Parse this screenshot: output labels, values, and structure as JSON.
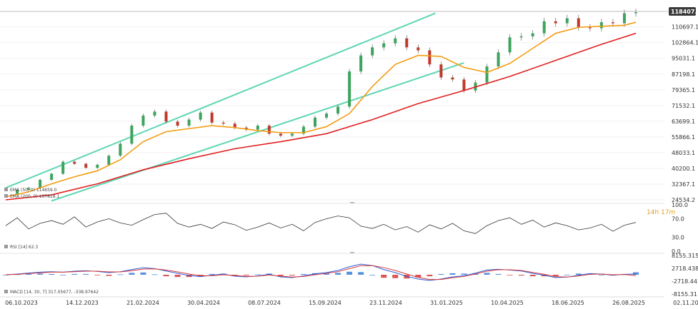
{
  "chart_data": [
    {
      "type": "line",
      "panel": "price",
      "ylim": [
        24534.2,
        118407.8
      ],
      "y_ticks": [
        "118407.8",
        "110697.1",
        "102864.1",
        "95031.1",
        "87198.1",
        "79365.1",
        "71532.1",
        "63699.1",
        "55866.1",
        "48033.1",
        "40200.1",
        "32367.1",
        "24534.2"
      ],
      "x_ticks": [
        "06.10.2023",
        "14.12.2023",
        "21.02.2024",
        "30.04.2024",
        "08.07.2024",
        "15.09.2024",
        "23.11.2024",
        "31.01.2025",
        "10.04.2025",
        "18.06.2025",
        "26.08.2025",
        "02.11.2025"
      ],
      "last_price_label": "118407.8",
      "countdown": "14h 17m",
      "legend": [
        {
          "name": "EMA (50, 0) 114659.0",
          "color": "#f39c12"
        },
        {
          "name": "EMA (200, 0) 107818.1",
          "color": "#e02020"
        }
      ],
      "channel": {
        "color": "#5fd6b4",
        "upper": [
          [
            0,
            30500
          ],
          [
            37.5,
            117500
          ]
        ],
        "lower": [
          [
            4,
            24000
          ],
          [
            40,
            92800
          ]
        ]
      },
      "price": [
        [
          0,
          27500
        ],
        [
          1,
          29500
        ],
        [
          2,
          30500
        ],
        [
          3,
          34500
        ],
        [
          4,
          37500
        ],
        [
          5,
          43500
        ],
        [
          6,
          42500
        ],
        [
          7,
          40500
        ],
        [
          8,
          42000
        ],
        [
          9,
          46500
        ],
        [
          10,
          52500
        ],
        [
          11,
          61500
        ],
        [
          12,
          66500
        ],
        [
          13,
          68500
        ],
        [
          14,
          63500
        ],
        [
          15,
          61500
        ],
        [
          16,
          64500
        ],
        [
          17,
          68000
        ],
        [
          18,
          63000
        ],
        [
          19,
          62500
        ],
        [
          20,
          60500
        ],
        [
          21,
          59500
        ],
        [
          22,
          61500
        ],
        [
          23,
          57500
        ],
        [
          24,
          56500
        ],
        [
          25,
          57500
        ],
        [
          26,
          61000
        ],
        [
          27,
          65500
        ],
        [
          28,
          67500
        ],
        [
          29,
          71000
        ],
        [
          30,
          88500
        ],
        [
          31,
          96500
        ],
        [
          32,
          100500
        ],
        [
          33,
          102500
        ],
        [
          34,
          105000
        ],
        [
          35,
          100500
        ],
        [
          36,
          99000
        ],
        [
          37,
          92000
        ],
        [
          38,
          85500
        ],
        [
          39,
          84500
        ],
        [
          40,
          79000
        ],
        [
          41,
          83000
        ],
        [
          42,
          91000
        ],
        [
          43,
          98000
        ],
        [
          44,
          105500
        ],
        [
          45,
          106000
        ],
        [
          46,
          107500
        ],
        [
          47,
          113500
        ],
        [
          48,
          112500
        ],
        [
          49,
          115000
        ],
        [
          50,
          110500
        ],
        [
          51,
          110000
        ],
        [
          52,
          113000
        ],
        [
          53,
          112500
        ],
        [
          54,
          117500
        ],
        [
          55,
          118000
        ]
      ],
      "ema50": [
        [
          0,
          26000
        ],
        [
          2,
          28500
        ],
        [
          4,
          32500
        ],
        [
          6,
          36000
        ],
        [
          8,
          39000
        ],
        [
          10,
          44500
        ],
        [
          12,
          53500
        ],
        [
          14,
          58500
        ],
        [
          16,
          60000
        ],
        [
          18,
          61500
        ],
        [
          20,
          60500
        ],
        [
          22,
          59000
        ],
        [
          24,
          58000
        ],
        [
          26,
          58000
        ],
        [
          28,
          61000
        ],
        [
          30,
          67500
        ],
        [
          32,
          81000
        ],
        [
          34,
          92000
        ],
        [
          36,
          96500
        ],
        [
          38,
          96000
        ],
        [
          40,
          90500
        ],
        [
          42,
          88000
        ],
        [
          44,
          92500
        ],
        [
          46,
          100000
        ],
        [
          48,
          107500
        ],
        [
          50,
          110500
        ],
        [
          52,
          111000
        ],
        [
          54,
          111500
        ],
        [
          55,
          113000
        ]
      ],
      "ema200": [
        [
          0,
          24534.2
        ],
        [
          4,
          27000
        ],
        [
          8,
          32500
        ],
        [
          12,
          39500
        ],
        [
          16,
          45000
        ],
        [
          20,
          50000
        ],
        [
          24,
          53500
        ],
        [
          28,
          57500
        ],
        [
          32,
          64500
        ],
        [
          36,
          72500
        ],
        [
          40,
          79000
        ],
        [
          44,
          86000
        ],
        [
          48,
          94000
        ],
        [
          52,
          102000
        ],
        [
          55,
          107500
        ]
      ]
    },
    {
      "type": "line",
      "panel": "rsi",
      "legend": "RSI [14] 62.3",
      "ylim": [
        0,
        100
      ],
      "y_ticks": [
        "100.0",
        "70.0",
        "30.0",
        "0.0"
      ],
      "values": [
        55,
        72,
        48,
        60,
        66,
        58,
        74,
        52,
        63,
        70,
        61,
        56,
        68,
        79,
        82,
        60,
        52,
        58,
        49,
        63,
        57,
        45,
        52,
        61,
        50,
        58,
        44,
        62,
        70,
        76,
        72,
        54,
        49,
        58,
        46,
        53,
        41,
        57,
        48,
        60,
        44,
        38,
        55,
        66,
        72,
        58,
        67,
        52,
        61,
        55,
        46,
        50,
        58,
        43,
        56,
        62
      ]
    },
    {
      "type": "bar",
      "panel": "macd",
      "legend": "MACD [14, 30, 7] 317.05677, -338.97642",
      "ylim": [
        -8155.31,
        8155.315
      ],
      "y_ticks": [
        "8155.315",
        "2718.438",
        "-2718.44",
        "-8155.31"
      ],
      "macd": [
        0,
        300,
        700,
        1100,
        1300,
        1100,
        1500,
        1700,
        1400,
        900,
        1300,
        2200,
        3000,
        2600,
        1600,
        600,
        -300,
        -800,
        -200,
        300,
        -600,
        -900,
        -500,
        200,
        -900,
        -1200,
        -500,
        400,
        900,
        1800,
        3400,
        4500,
        3900,
        2200,
        900,
        -700,
        -1800,
        -2400,
        -1800,
        -900,
        -400,
        700,
        2000,
        2300,
        2000,
        1600,
        600,
        -200,
        -1200,
        -1000,
        -200,
        500,
        300,
        -200,
        200,
        317
      ],
      "signal": [
        0,
        200,
        500,
        800,
        1100,
        1100,
        1300,
        1500,
        1500,
        1200,
        1200,
        1700,
        2400,
        2500,
        2000,
        1200,
        300,
        -400,
        -400,
        0,
        -300,
        -700,
        -600,
        -100,
        -600,
        -1000,
        -700,
        0,
        600,
        1300,
        2600,
        3800,
        3900,
        3000,
        1800,
        300,
        -1100,
        -2000,
        -2000,
        -1300,
        -700,
        300,
        1500,
        2100,
        2100,
        1800,
        1000,
        200,
        -800,
        -1000,
        -500,
        200,
        300,
        0,
        100,
        -339
      ]
    }
  ]
}
